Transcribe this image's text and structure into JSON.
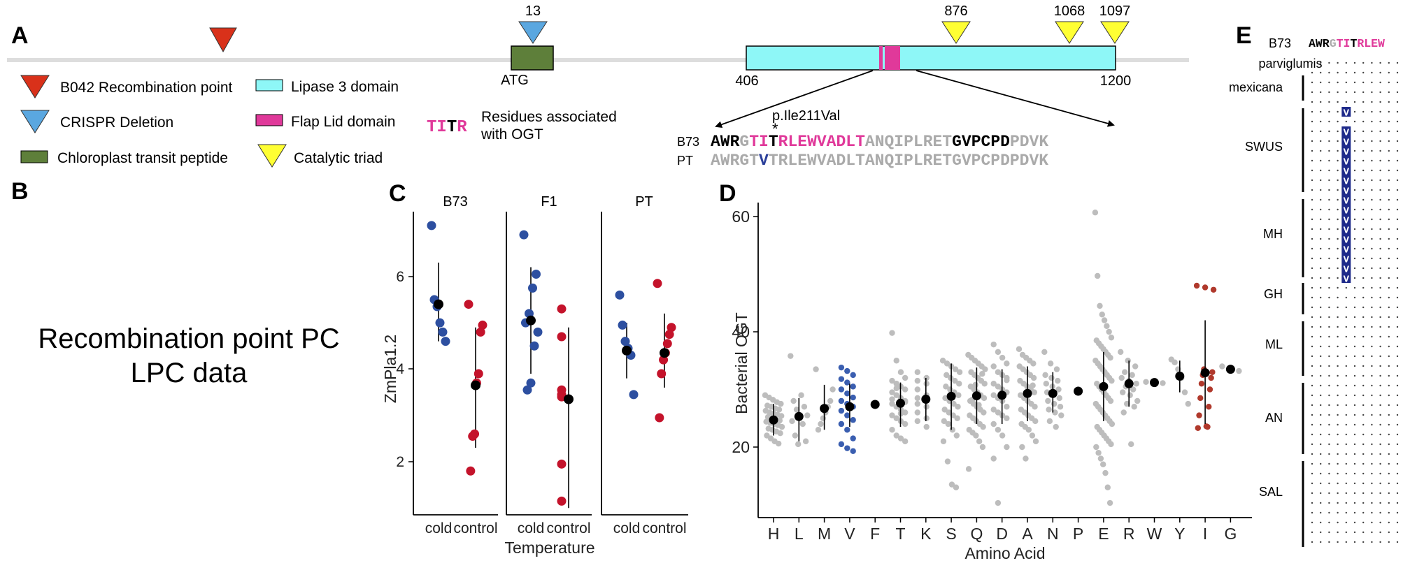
{
  "panels": {
    "a": "A",
    "b": "B",
    "c": "C",
    "d": "D",
    "e": "E"
  },
  "panel_a": {
    "crispr_marker": "13",
    "catalytic_markers": [
      "876",
      "1068",
      "1097"
    ],
    "atg_label": "ATG",
    "lipase_start": "406",
    "lipase_end": "1200",
    "legend": {
      "recombination": "B042 Recombination point",
      "crispr": "CRISPR Deletion",
      "chloroplast": "Chloroplast transit peptide",
      "lipase": "Lipase 3 domain",
      "flap": "Flap Lid domain",
      "catalytic": "Catalytic triad",
      "ogt_glyph_1": "TI",
      "ogt_glyph_2": "T",
      "ogt_glyph_3": "R",
      "ogt_line1": "Residues associated",
      "ogt_line2": "with OGT"
    },
    "colors": {
      "recombination": "#d9311a",
      "crispr": "#5aa7e0",
      "chloroplast": "#5e7f3a",
      "lipase": "#8ef7f7",
      "flap": "#e0399a",
      "catalytic": "#ffff33"
    },
    "mutation_label": "p.Ile211Val",
    "mutation_star": "*",
    "seq_b73_name": "B73",
    "seq_pt_name": "PT",
    "seq_b73": {
      "s1": "AWR",
      "s2": "G",
      "s3": "TI",
      "s4": "T",
      "s5": "RLEWVADLT",
      "s6": "ANQIPLRET",
      "s7": "GVPCPD",
      "s8": "PDVK"
    },
    "seq_pt": {
      "s1": "AWRGT",
      "s2": "V",
      "s3": "TRLEWVADLTANQIPLRETGVPCPDPDVK"
    }
  },
  "panel_b": {
    "line1": "Recombination point PC",
    "line2": "LPC data"
  },
  "panel_c": {
    "facets": [
      "B73",
      "F1",
      "PT"
    ],
    "xtick_cold": "cold",
    "xtick_control": "control",
    "xlabel": "Temperature",
    "ylabel": "ZmPla1.2",
    "yticks": [
      "2",
      "4",
      "6"
    ]
  },
  "panel_d": {
    "xlabel": "Amino Acid",
    "ylabel": "Bacterial OGT",
    "yticks": [
      "20",
      "40",
      "60"
    ]
  },
  "panel_e": {
    "ref_name": "B73",
    "ref_seq": {
      "s1": "AWR",
      "s2": "G",
      "s3": "TI",
      "s4": "T",
      "s5": "RLEW"
    },
    "groups": [
      "parviglumis",
      "mexicana",
      "SWUS",
      "MH",
      "GH",
      "ML",
      "AN",
      "SAL"
    ],
    "v": "V"
  },
  "chart_data": [
    {
      "type": "scatter",
      "title": "",
      "xlabel": "Temperature",
      "ylabel": "ZmPla1.2",
      "ylim": [
        0.9,
        7.3
      ],
      "facets": [
        "B73",
        "F1",
        "PT"
      ],
      "categories": [
        "cold",
        "control"
      ],
      "colors": {
        "cold": "#2d4fa0",
        "control": "#c4132b",
        "summary": "#000000"
      },
      "groups": [
        {
          "facet": "B73",
          "condition": "cold",
          "points": [
            7.1,
            5.5,
            5.35,
            5.0,
            4.8,
            4.6
          ],
          "mean": 5.4,
          "lo": 4.6,
          "hi": 6.3
        },
        {
          "facet": "B73",
          "condition": "control",
          "points": [
            5.4,
            4.95,
            4.8,
            3.9,
            3.7,
            2.6,
            2.55,
            1.8
          ],
          "mean": 3.65,
          "lo": 2.3,
          "hi": 4.9
        },
        {
          "facet": "F1",
          "condition": "cold",
          "points": [
            6.9,
            6.05,
            5.75,
            5.2,
            5.0,
            4.8,
            4.5,
            3.7,
            3.55
          ],
          "mean": 5.05,
          "lo": 3.9,
          "hi": 6.2
        },
        {
          "facet": "F1",
          "condition": "control",
          "points": [
            5.3,
            4.7,
            3.55,
            3.45,
            3.4,
            1.95,
            1.15
          ],
          "mean": 3.35,
          "lo": 1.0,
          "hi": 4.9
        },
        {
          "facet": "PT",
          "condition": "cold",
          "points": [
            5.6,
            4.95,
            4.6,
            4.45,
            4.3,
            3.45
          ],
          "mean": 4.4,
          "lo": 3.8,
          "hi": 5.0
        },
        {
          "facet": "PT",
          "condition": "control",
          "points": [
            5.85,
            4.9,
            4.75,
            4.55,
            4.35,
            4.2,
            3.9,
            2.95
          ],
          "mean": 4.35,
          "lo": 3.6,
          "hi": 5.2
        }
      ]
    },
    {
      "type": "scatter",
      "title": "",
      "xlabel": "Amino Acid",
      "ylabel": "Bacterial OGT",
      "ylim": [
        8,
        63
      ],
      "categories": [
        "H",
        "L",
        "M",
        "V",
        "F",
        "T",
        "K",
        "S",
        "Q",
        "D",
        "A",
        "N",
        "P",
        "E",
        "R",
        "W",
        "Y",
        "I",
        "G"
      ],
      "colors": {
        "default": "#bdbdbd",
        "V": "#3a5eb0",
        "I": "#b0392c",
        "summary": "#000000"
      },
      "series": [
        {
          "name": "H",
          "mean": 24.7,
          "lo": 22.0,
          "hi": 27.5,
          "points": [
            29,
            28.6,
            28.2,
            27.8,
            27.5,
            27.2,
            27,
            26.7,
            26.5,
            26.3,
            26,
            25.8,
            25.6,
            25.4,
            25.2,
            25,
            24.8,
            24.6,
            24.4,
            24.2,
            24,
            23.8,
            23.5,
            23.2,
            23,
            22.7,
            22.4,
            22,
            21.5,
            21,
            20.6
          ]
        },
        {
          "name": "L",
          "mean": 25.3,
          "lo": 21.0,
          "hi": 28.5,
          "points": [
            35.8,
            29,
            28,
            27,
            26.5,
            25.5,
            25,
            24.5,
            24,
            22,
            21,
            20.5
          ]
        },
        {
          "name": "M",
          "mean": 26.7,
          "lo": 23.0,
          "hi": 30.8,
          "points": [
            33.5,
            30,
            28,
            27,
            26,
            25,
            24,
            23
          ]
        },
        {
          "name": "V",
          "mean": 27.0,
          "lo": 23.5,
          "hi": 31.0,
          "points": [
            33.8,
            33.2,
            32.5,
            31.8,
            31.2,
            30.5,
            30,
            29.3,
            28.6,
            28,
            27.5,
            27,
            26.3,
            25.5,
            24.7,
            24,
            23,
            21.5,
            20.5,
            19.8,
            19.3
          ]
        },
        {
          "name": "F",
          "mean": 27.4,
          "lo": 27.2,
          "hi": 27.6,
          "points": [
            27.4
          ]
        },
        {
          "name": "T",
          "mean": 27.6,
          "lo": 23.5,
          "hi": 31.2,
          "points": [
            39.8,
            35,
            33,
            32,
            31.5,
            31,
            30.5,
            30,
            29.5,
            29,
            28.5,
            28,
            27.5,
            27,
            26.5,
            26,
            25.5,
            25,
            24.5,
            24,
            23,
            22,
            21.5,
            21,
            28.3,
            30.2,
            25.8,
            27.8
          ]
        },
        {
          "name": "K",
          "mean": 28.3,
          "lo": 24.5,
          "hi": 32.0,
          "points": [
            33,
            32,
            31.5,
            31,
            30,
            29,
            28.5,
            28,
            27.5,
            27,
            26,
            25,
            24.5,
            23.5
          ]
        },
        {
          "name": "S",
          "mean": 28.8,
          "lo": 23.0,
          "hi": 34.5,
          "points": [
            35,
            34.5,
            34,
            33.5,
            33,
            32.5,
            32,
            31.5,
            31,
            30.5,
            30,
            29.5,
            29,
            28.5,
            28,
            27.5,
            27,
            26.5,
            26,
            25.5,
            25,
            24.5,
            24,
            23,
            22,
            21,
            17.5,
            13.5,
            13
          ]
        },
        {
          "name": "Q",
          "mean": 28.9,
          "lo": 24.0,
          "hi": 33.8,
          "points": [
            36,
            35.5,
            35,
            34.5,
            34,
            33.5,
            33,
            32.5,
            32,
            31.5,
            31,
            30.5,
            30,
            29.5,
            29,
            28.5,
            28,
            27.5,
            27,
            26.5,
            26,
            25.5,
            25,
            24.5,
            24,
            23.5,
            23,
            22.5,
            22,
            21,
            20,
            16.2,
            28.2,
            30.8,
            27.3,
            32.7
          ]
        },
        {
          "name": "D",
          "mean": 29.0,
          "lo": 24.0,
          "hi": 33.5,
          "points": [
            37.8,
            36.5,
            35.5,
            34.5,
            34,
            33,
            32.5,
            32,
            31,
            30.5,
            30,
            29.5,
            29,
            28.5,
            28,
            27,
            26.5,
            26,
            25.5,
            25,
            24,
            23,
            22,
            20,
            18,
            10.3,
            28.7,
            31.6
          ]
        },
        {
          "name": "A",
          "mean": 29.3,
          "lo": 24.5,
          "hi": 34.0,
          "points": [
            37,
            36,
            35.5,
            35,
            34.5,
            34,
            33.5,
            33,
            32.5,
            32,
            31.5,
            31,
            30.5,
            30,
            29.5,
            29,
            28.5,
            28,
            27.5,
            27,
            26.5,
            26,
            25.5,
            25,
            24.5,
            24,
            23.5,
            23,
            22,
            21,
            20,
            18,
            29.8,
            30.7
          ]
        },
        {
          "name": "N",
          "mean": 29.3,
          "lo": 26.0,
          "hi": 33.0,
          "points": [
            36.5,
            34.5,
            33.5,
            32.5,
            32,
            31.5,
            31,
            30.5,
            30,
            29.5,
            29,
            28.5,
            28,
            27.5,
            27,
            26.5,
            26,
            25.5,
            24.5,
            23.5
          ]
        },
        {
          "name": "P",
          "mean": 29.7,
          "lo": 29.5,
          "hi": 29.9,
          "points": [
            29.7
          ]
        },
        {
          "name": "E",
          "mean": 30.5,
          "lo": 24.5,
          "hi": 36.5,
          "points": [
            60.7,
            49.7,
            44.5,
            43,
            42,
            41,
            40,
            39,
            38.5,
            38,
            37.5,
            37,
            36.5,
            36,
            35.5,
            35,
            34.5,
            34,
            33.5,
            33,
            32.5,
            32,
            31.5,
            31,
            30.5,
            30,
            29.5,
            29,
            28.5,
            28,
            27.5,
            27,
            26.5,
            26,
            25.5,
            25,
            24.5,
            24,
            23.5,
            23,
            22.5,
            22,
            21.5,
            21,
            20.5,
            20,
            19,
            18,
            17,
            15.5,
            13,
            10.3
          ]
        },
        {
          "name": "R",
          "mean": 31.0,
          "lo": 27.0,
          "hi": 35.0,
          "points": [
            36.5,
            35,
            34,
            33,
            32.5,
            32,
            31.5,
            31,
            30.5,
            30,
            29.5,
            29,
            28,
            27.5,
            27,
            26,
            20.5
          ]
        },
        {
          "name": "W",
          "mean": 31.2,
          "lo": 31.0,
          "hi": 31.4,
          "points": [
            31.3,
            31.1
          ]
        },
        {
          "name": "Y",
          "mean": 32.3,
          "lo": 29.5,
          "hi": 35.0,
          "points": [
            35.2,
            34.7,
            33.5,
            32,
            29.5,
            27.5
          ]
        },
        {
          "name": "I",
          "mean": 32.9,
          "lo": 24.0,
          "hi": 42.0,
          "points": [
            48.0,
            47.7,
            47.3,
            33.5,
            33,
            32.5,
            32,
            31,
            30,
            28.5,
            27,
            25.5,
            23.5,
            23.3,
            23.6
          ]
        },
        {
          "name": "G",
          "mean": 33.5,
          "lo": 32.8,
          "hi": 34.2,
          "points": [
            34.0,
            33.2
          ]
        }
      ]
    }
  ]
}
